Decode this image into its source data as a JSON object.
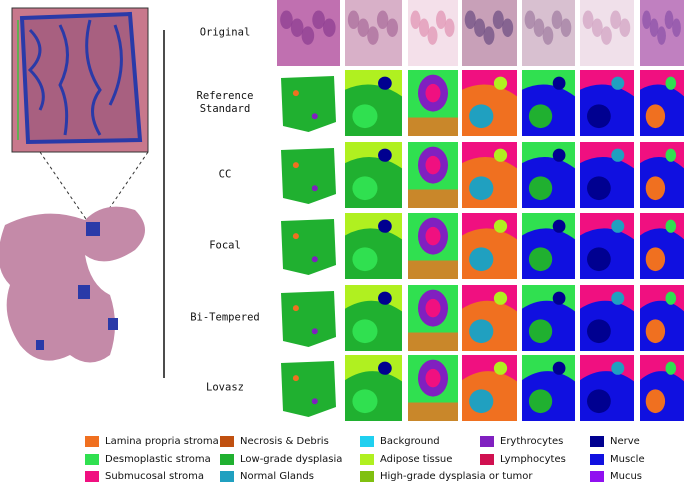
{
  "row_labels": [
    "Original",
    "Reference Standard",
    "CC",
    "Focal",
    "Bi-Tempered",
    "Lovasz"
  ],
  "legend": [
    {
      "label": "Lamina propria stroma",
      "color": "#f07020"
    },
    {
      "label": "Desmoplastic stroma",
      "color": "#30e050"
    },
    {
      "label": "Submucosal stroma",
      "color": "#f01080"
    },
    {
      "label": "Necrosis & Debris",
      "color": "#c05010"
    },
    {
      "label": "Low-grade dysplasia",
      "color": "#20b030"
    },
    {
      "label": "Normal Glands",
      "color": "#20a0c0"
    },
    {
      "label": "Background",
      "color": "#20d0f0"
    },
    {
      "label": "Adipose tissue",
      "color": "#b0f020"
    },
    {
      "label": "High-grade dysplasia or tumor",
      "color": "#80c010"
    },
    {
      "label": "Erythrocytes",
      "color": "#8020c0"
    },
    {
      "label": "Lymphocytes",
      "color": "#d01050"
    },
    {
      "label": "Nerve",
      "color": "#000090"
    },
    {
      "label": "Muscle",
      "color": "#1010e0"
    },
    {
      "label": "Mucus",
      "color": "#9010f0"
    }
  ]
}
